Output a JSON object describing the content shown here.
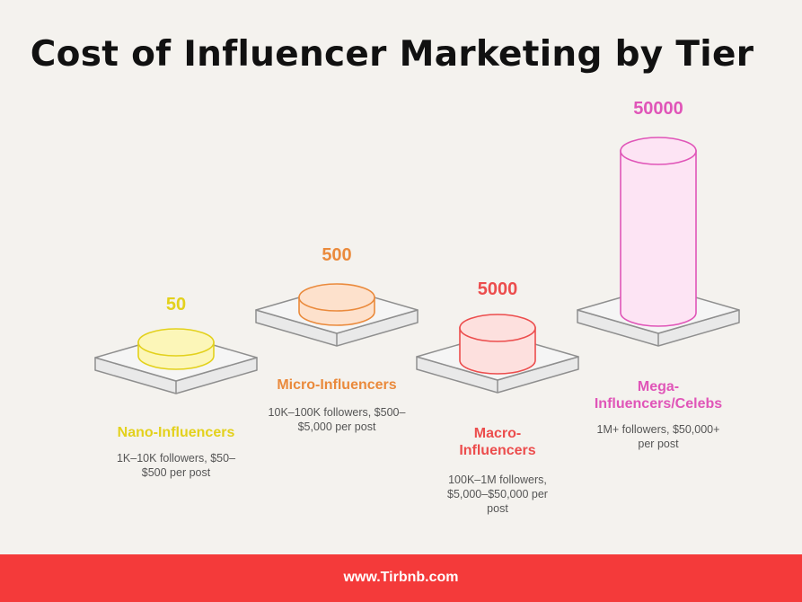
{
  "title": "Cost of Influencer Marketing by Tier",
  "footer": {
    "url": "www.Tirbnb.com",
    "color": "#f43a3a"
  },
  "chart_data": {
    "type": "bar",
    "style": "3d-cylinders-on-platforms",
    "title": "Cost of Influencer Marketing by Tier",
    "categories": [
      "Nano-Influencers",
      "Micro-Influencers",
      "Macro-Influencers",
      "Mega-Influencers/Celebs"
    ],
    "values": [
      50,
      500,
      5000,
      50000
    ],
    "value_labels": [
      "50",
      "500",
      "5000",
      "50000"
    ],
    "descriptions": [
      "1K–10K followers, $50–$500 per post",
      "10K–100K followers, $500–$5,000 per post",
      "100K–1M followers, $5,000–$50,000 per post",
      "1M+ followers, $50,000+ per post"
    ],
    "colors": [
      "#e3d11c",
      "#ea8a3c",
      "#ec4d4d",
      "#e055b8"
    ],
    "fills": [
      "#fcf6b8",
      "#fde1cc",
      "#fde0de",
      "#fde4f4"
    ],
    "grid": false,
    "legend": "none"
  }
}
